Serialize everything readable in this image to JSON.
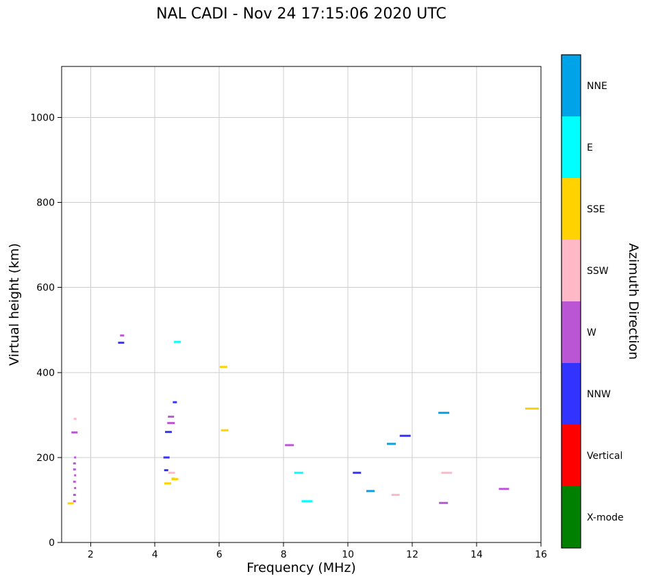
{
  "chart_data": {
    "type": "scatter",
    "title": "NAL CADI - Nov 24 17:15:06 2020 UTC",
    "xlabel": "Frequency (MHz)",
    "ylabel": "Virtual height (km)",
    "xlim": [
      1.1,
      16
    ],
    "ylim": [
      0,
      1120
    ],
    "xticks": [
      2,
      4,
      6,
      8,
      10,
      12,
      14,
      16
    ],
    "yticks": [
      0,
      200,
      400,
      600,
      800,
      1000
    ],
    "grid": true,
    "grid_color": "#cccccc",
    "marker": "horizontal-dash",
    "series": [
      {
        "name": "NNE",
        "color": "#00A2E8",
        "points": [
          [
            10.7,
            121,
            12
          ],
          [
            11.35,
            232,
            13
          ],
          [
            12.98,
            305,
            16
          ]
        ]
      },
      {
        "name": "E",
        "color": "#00FFFF",
        "points": [
          [
            4.57,
            150,
            5
          ],
          [
            4.7,
            472,
            10
          ],
          [
            8.47,
            164,
            13
          ],
          [
            8.73,
            97,
            16
          ]
        ]
      },
      {
        "name": "SSE",
        "color": "#FFD200",
        "points": [
          [
            1.38,
            92,
            9
          ],
          [
            4.4,
            139,
            10
          ],
          [
            4.62,
            149,
            10
          ],
          [
            6.13,
            413,
            11
          ],
          [
            6.17,
            264,
            11
          ],
          [
            15.72,
            315,
            20
          ]
        ]
      },
      {
        "name": "SSW",
        "color": "#FFB9C6",
        "points": [
          [
            1.52,
            291,
            4
          ],
          [
            4.52,
            164,
            10
          ],
          [
            11.48,
            112,
            12
          ],
          [
            13.07,
            164,
            16
          ]
        ]
      },
      {
        "name": "W",
        "color": "#BA55D3",
        "points": [
          [
            1.5,
            97,
            4
          ],
          [
            1.5,
            112,
            4
          ],
          [
            1.52,
            128,
            3
          ],
          [
            1.5,
            143,
            4
          ],
          [
            1.52,
            158,
            3
          ],
          [
            1.5,
            172,
            4
          ],
          [
            1.5,
            186,
            4
          ],
          [
            1.52,
            200,
            3
          ],
          [
            1.5,
            259,
            9
          ],
          [
            2.98,
            487,
            6
          ],
          [
            4.5,
            281,
            11
          ],
          [
            4.5,
            296,
            9
          ],
          [
            8.18,
            229,
            13
          ],
          [
            12.97,
            93,
            13
          ],
          [
            14.85,
            126,
            15
          ]
        ]
      },
      {
        "name": "NNW",
        "color": "#3333FF",
        "points": [
          [
            2.95,
            470,
            9
          ],
          [
            4.35,
            170,
            6
          ],
          [
            4.36,
            200,
            9
          ],
          [
            4.42,
            260,
            10
          ],
          [
            4.62,
            330,
            6
          ],
          [
            10.28,
            164,
            12
          ],
          [
            11.78,
            251,
            16
          ]
        ]
      },
      {
        "name": "Vertical",
        "color": "#FF0000",
        "points": []
      },
      {
        "name": "X-mode",
        "color": "#008000",
        "points": []
      }
    ],
    "colorbar": {
      "label": "Azimuth Direction",
      "segments": [
        {
          "label": "NNE",
          "color": "#00A2E8"
        },
        {
          "label": "E",
          "color": "#00FFFF"
        },
        {
          "label": "SSE",
          "color": "#FFD200"
        },
        {
          "label": "SSW",
          "color": "#FFB9C6"
        },
        {
          "label": "W",
          "color": "#BA55D3"
        },
        {
          "label": "NNW",
          "color": "#3333FF"
        },
        {
          "label": "Vertical",
          "color": "#FF0000"
        },
        {
          "label": "X-mode",
          "color": "#008000"
        }
      ]
    }
  }
}
